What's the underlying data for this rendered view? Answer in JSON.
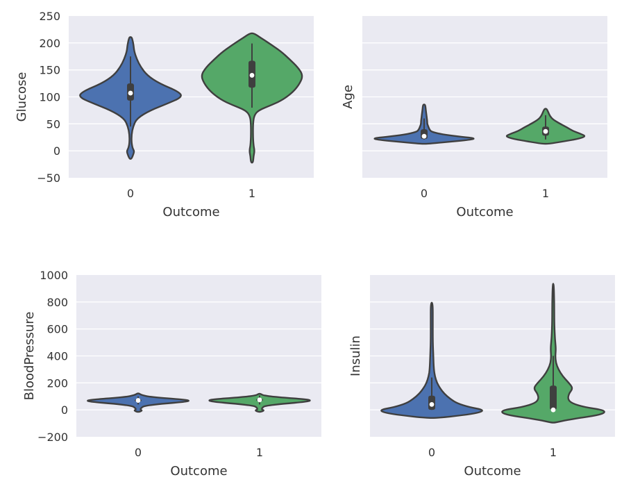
{
  "colors": {
    "outcome_0": "#4c72b0",
    "outcome_1": "#55a868",
    "panel_bg": "#eaeaf2",
    "edge": "#3f3f3f",
    "grid": "#ffffff"
  },
  "chart_data": [
    {
      "type": "violin",
      "title": "",
      "xlabel": "Outcome",
      "ylabel": "Glucose",
      "categories": [
        "0",
        "1"
      ],
      "ylim": [
        -50,
        250
      ],
      "yticks": [
        -50,
        0,
        50,
        100,
        150,
        200,
        250
      ],
      "ytick_labels": [
        "−50",
        "0",
        "50",
        "100",
        "150",
        "200",
        "250"
      ],
      "show_yticks": true,
      "violins": [
        {
          "category": "0",
          "q1": 93,
          "median": 107,
          "q3": 125,
          "whisker_low": 45,
          "whisker_high": 175,
          "profile": [
            [
              -15,
              0.02
            ],
            [
              -5,
              0.06
            ],
            [
              0,
              0.07
            ],
            [
              5,
              0.04
            ],
            [
              15,
              0.02
            ],
            [
              30,
              0.02
            ],
            [
              45,
              0.05
            ],
            [
              60,
              0.12
            ],
            [
              75,
              0.38
            ],
            [
              88,
              0.72
            ],
            [
              100,
              1.0
            ],
            [
              110,
              0.92
            ],
            [
              125,
              0.55
            ],
            [
              140,
              0.32
            ],
            [
              155,
              0.2
            ],
            [
              170,
              0.12
            ],
            [
              185,
              0.07
            ],
            [
              195,
              0.06
            ],
            [
              205,
              0.04
            ],
            [
              211,
              0.02
            ]
          ]
        },
        {
          "category": "1",
          "q1": 117,
          "median": 140,
          "q3": 167,
          "whisker_low": 80,
          "whisker_high": 199,
          "profile": [
            [
              -22,
              0.02
            ],
            [
              -10,
              0.03
            ],
            [
              0,
              0.05
            ],
            [
              10,
              0.03
            ],
            [
              25,
              0.02
            ],
            [
              50,
              0.02
            ],
            [
              65,
              0.04
            ],
            [
              75,
              0.12
            ],
            [
              85,
              0.38
            ],
            [
              95,
              0.6
            ],
            [
              110,
              0.8
            ],
            [
              125,
              0.92
            ],
            [
              140,
              0.98
            ],
            [
              155,
              0.88
            ],
            [
              170,
              0.72
            ],
            [
              185,
              0.55
            ],
            [
              200,
              0.32
            ],
            [
              210,
              0.16
            ],
            [
              218,
              0.04
            ]
          ]
        }
      ]
    },
    {
      "type": "violin",
      "title": "",
      "xlabel": "Outcome",
      "ylabel": "Age",
      "categories": [
        "0",
        "1"
      ],
      "ylim": [
        -50,
        250
      ],
      "yticks": [
        -50,
        0,
        50,
        100,
        150,
        200,
        250
      ],
      "ytick_labels": [],
      "show_yticks": false,
      "violins": [
        {
          "category": "0",
          "q1": 22,
          "median": 27,
          "q3": 40,
          "whisker_low": 21,
          "whisker_high": 60,
          "profile": [
            [
              13,
              0.06
            ],
            [
              16,
              0.4
            ],
            [
              20,
              0.85
            ],
            [
              23,
              1.0
            ],
            [
              26,
              0.72
            ],
            [
              30,
              0.38
            ],
            [
              35,
              0.14
            ],
            [
              40,
              0.1
            ],
            [
              45,
              0.08
            ],
            [
              50,
              0.06
            ],
            [
              55,
              0.06
            ],
            [
              62,
              0.05
            ],
            [
              70,
              0.04
            ],
            [
              78,
              0.03
            ],
            [
              86,
              0.02
            ]
          ]
        },
        {
          "category": "1",
          "q1": 28,
          "median": 36,
          "q3": 45,
          "whisker_low": 21,
          "whisker_high": 66,
          "profile": [
            [
              13,
              0.06
            ],
            [
              17,
              0.32
            ],
            [
              22,
              0.62
            ],
            [
              27,
              0.78
            ],
            [
              32,
              0.66
            ],
            [
              37,
              0.52
            ],
            [
              43,
              0.42
            ],
            [
              50,
              0.28
            ],
            [
              58,
              0.14
            ],
            [
              65,
              0.08
            ],
            [
              72,
              0.05
            ],
            [
              78,
              0.02
            ]
          ]
        }
      ]
    },
    {
      "type": "violin",
      "title": "",
      "xlabel": "Outcome",
      "ylabel": "BloodPressure",
      "categories": [
        "0",
        "1"
      ],
      "ylim": [
        -200,
        1000
      ],
      "yticks": [
        -200,
        0,
        200,
        400,
        600,
        800,
        1000
      ],
      "ytick_labels": [
        "−200",
        "0",
        "200",
        "400",
        "600",
        "800",
        "1000"
      ],
      "show_yticks": true,
      "violins": [
        {
          "category": "0",
          "q1": 62,
          "median": 70,
          "q3": 78,
          "whisker_low": 40,
          "whisker_high": 100,
          "profile": [
            [
              -15,
              0.02
            ],
            [
              -5,
              0.08
            ],
            [
              3,
              0.04
            ],
            [
              15,
              0.06
            ],
            [
              30,
              0.12
            ],
            [
              45,
              0.45
            ],
            [
              60,
              0.92
            ],
            [
              70,
              1.0
            ],
            [
              80,
              0.75
            ],
            [
              95,
              0.25
            ],
            [
              110,
              0.06
            ],
            [
              122,
              0.02
            ]
          ]
        },
        {
          "category": "1",
          "q1": 66,
          "median": 74,
          "q3": 82,
          "whisker_low": 40,
          "whisker_high": 106,
          "profile": [
            [
              -15,
              0.02
            ],
            [
              -5,
              0.09
            ],
            [
              3,
              0.04
            ],
            [
              15,
              0.05
            ],
            [
              30,
              0.1
            ],
            [
              45,
              0.45
            ],
            [
              60,
              0.9
            ],
            [
              72,
              1.0
            ],
            [
              82,
              0.78
            ],
            [
              96,
              0.3
            ],
            [
              108,
              0.06
            ],
            [
              120,
              0.02
            ]
          ]
        }
      ]
    },
    {
      "type": "violin",
      "title": "",
      "xlabel": "Outcome",
      "ylabel": "Insulin",
      "categories": [
        "0",
        "1"
      ],
      "ylim": [
        -200,
        1000
      ],
      "yticks": [
        -200,
        0,
        200,
        400,
        600,
        800,
        1000
      ],
      "ytick_labels": [],
      "show_yticks": false,
      "violins": [
        {
          "category": "0",
          "q1": 0,
          "median": 40,
          "q3": 105,
          "whisker_low": 0,
          "whisker_high": 240,
          "profile": [
            [
              -60,
              0.1
            ],
            [
              -40,
              0.6
            ],
            [
              -20,
              0.92
            ],
            [
              0,
              1.0
            ],
            [
              20,
              0.72
            ],
            [
              50,
              0.48
            ],
            [
              80,
              0.36
            ],
            [
              120,
              0.24
            ],
            [
              160,
              0.16
            ],
            [
              200,
              0.1
            ],
            [
              250,
              0.06
            ],
            [
              300,
              0.04
            ],
            [
              400,
              0.03
            ],
            [
              500,
              0.02
            ],
            [
              650,
              0.02
            ],
            [
              795,
              0.02
            ]
          ]
        },
        {
          "category": "1",
          "q1": 0,
          "median": 0,
          "q3": 180,
          "whisker_low": 0,
          "whisker_high": 400,
          "profile": [
            [
              -95,
              0.03
            ],
            [
              -80,
              0.2
            ],
            [
              -60,
              0.5
            ],
            [
              -40,
              0.85
            ],
            [
              -20,
              1.0
            ],
            [
              0,
              0.95
            ],
            [
              20,
              0.6
            ],
            [
              50,
              0.35
            ],
            [
              80,
              0.28
            ],
            [
              120,
              0.3
            ],
            [
              160,
              0.38
            ],
            [
              200,
              0.3
            ],
            [
              250,
              0.18
            ],
            [
              300,
              0.1
            ],
            [
              350,
              0.05
            ],
            [
              400,
              0.04
            ],
            [
              450,
              0.05
            ],
            [
              500,
              0.04
            ],
            [
              550,
              0.03
            ],
            [
              650,
              0.02
            ],
            [
              800,
              0.02
            ],
            [
              935,
              0.01
            ]
          ]
        }
      ]
    }
  ]
}
